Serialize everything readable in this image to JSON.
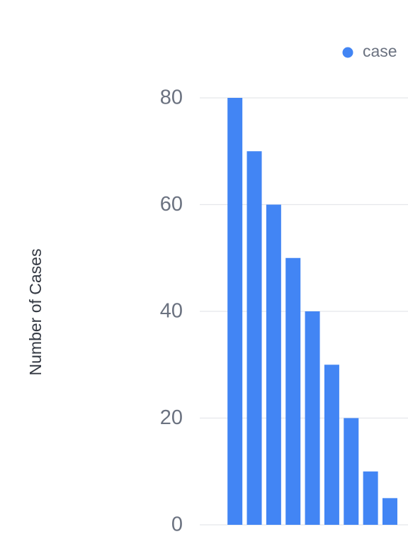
{
  "chart_data": {
    "type": "bar",
    "y_label": "Number of Cases",
    "categories": [
      null,
      null,
      null,
      null,
      null,
      null,
      null,
      null,
      null
    ],
    "series": [
      {
        "name": "case",
        "color": "#4285f4",
        "values": [
          80,
          70,
          60,
          50,
          40,
          30,
          20,
          10,
          5
        ]
      }
    ],
    "ylim": [
      0,
      80
    ],
    "yticks": [
      0,
      20,
      40,
      60,
      80
    ],
    "grid": true,
    "legend": "top"
  }
}
